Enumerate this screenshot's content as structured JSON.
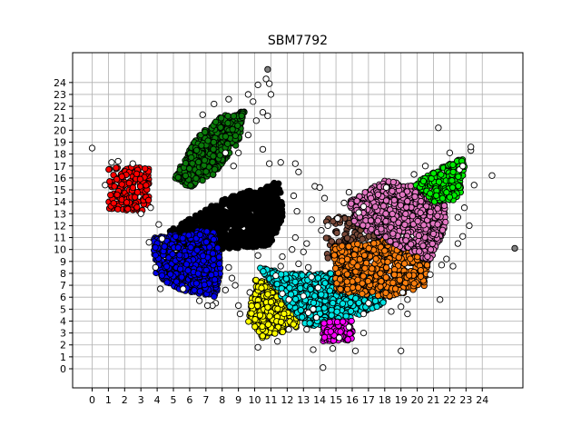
{
  "chart_data": {
    "type": "scatter",
    "title": "SBM7792",
    "xlabel": "",
    "ylabel": "",
    "xlim": [
      -1.2,
      26.5
    ],
    "ylim": [
      -1.6,
      26.5
    ],
    "xticks": [
      0,
      1,
      2,
      3,
      4,
      5,
      6,
      7,
      8,
      9,
      10,
      11,
      12,
      13,
      14,
      15,
      16,
      17,
      18,
      19,
      20,
      21,
      22,
      23,
      24
    ],
    "yticks": [
      0,
      1,
      2,
      3,
      4,
      5,
      6,
      7,
      8,
      9,
      10,
      11,
      12,
      13,
      14,
      15,
      16,
      17,
      18,
      19,
      20,
      21,
      22,
      23,
      24
    ],
    "grid": true,
    "legend": "none",
    "series": [
      {
        "color": "#ff0000",
        "kind": "rect",
        "x": [
          1.0,
          3.5
        ],
        "y": [
          13.2,
          16.9
        ]
      },
      {
        "color": "#0a7a0a",
        "kind": "poly",
        "poly": [
          [
            5.0,
            16.0
          ],
          [
            6.5,
            19.5
          ],
          [
            8.0,
            21.2
          ],
          [
            9.4,
            21.6
          ],
          [
            9.0,
            19.0
          ],
          [
            7.5,
            16.3
          ],
          [
            6.0,
            15.2
          ]
        ]
      },
      {
        "color": "#000000",
        "kind": "poly",
        "poly": [
          [
            4.7,
            11.5
          ],
          [
            8.0,
            14.2
          ],
          [
            11.5,
            15.7
          ],
          [
            11.8,
            13.0
          ],
          [
            11.0,
            10.3
          ],
          [
            7.5,
            10.0
          ],
          [
            5.0,
            10.5
          ]
        ]
      },
      {
        "color": "#0000ee",
        "kind": "poly",
        "poly": [
          [
            3.8,
            11.0
          ],
          [
            7.5,
            11.8
          ],
          [
            8.0,
            8.5
          ],
          [
            7.6,
            6.0
          ],
          [
            4.8,
            6.8
          ],
          [
            3.8,
            8.2
          ]
        ]
      },
      {
        "color": "#ffff00",
        "kind": "poly",
        "poly": [
          [
            10.0,
            7.5
          ],
          [
            12.6,
            6.5
          ],
          [
            12.6,
            3.5
          ],
          [
            10.5,
            2.5
          ],
          [
            9.6,
            4.0
          ]
        ]
      },
      {
        "color": "#00e5e5",
        "kind": "poly",
        "poly": [
          [
            10.2,
            8.5
          ],
          [
            12.0,
            8.0
          ],
          [
            14.5,
            8.0
          ],
          [
            17.8,
            8.2
          ],
          [
            18.0,
            5.5
          ],
          [
            16.0,
            4.2
          ],
          [
            13.2,
            3.5
          ],
          [
            12.0,
            5.5
          ]
        ]
      },
      {
        "color": "#ff00ff",
        "kind": "rect",
        "x": [
          14.2,
          16.0
        ],
        "y": [
          2.3,
          4.0
        ]
      },
      {
        "color": "#7a4a3a",
        "kind": "rect",
        "x": [
          14.4,
          18.6
        ],
        "y": [
          9.2,
          12.8
        ]
      },
      {
        "color": "#ff7f0e",
        "kind": "poly",
        "poly": [
          [
            14.8,
            10.2
          ],
          [
            18.5,
            11.0
          ],
          [
            20.8,
            10.0
          ],
          [
            20.5,
            7.0
          ],
          [
            18.5,
            6.0
          ],
          [
            15.0,
            6.5
          ]
        ]
      },
      {
        "color": "#e377c2",
        "kind": "poly",
        "poly": [
          [
            15.8,
            14.0
          ],
          [
            18.0,
            15.8
          ],
          [
            21.6,
            14.8
          ],
          [
            21.8,
            12.0
          ],
          [
            20.8,
            9.0
          ],
          [
            18.5,
            10.5
          ],
          [
            16.2,
            12.0
          ]
        ]
      },
      {
        "color": "#00ee00",
        "kind": "poly",
        "poly": [
          [
            19.8,
            15.5
          ],
          [
            21.5,
            16.9
          ],
          [
            23.0,
            17.8
          ],
          [
            22.6,
            14.2
          ],
          [
            21.0,
            14.0
          ]
        ]
      },
      {
        "color": "#ffffff",
        "kind": "scatter",
        "poly": [
          [
            0.5,
            17.0
          ],
          [
            7.0,
            23.0
          ],
          [
            11.0,
            24.5
          ],
          [
            12.5,
            17.5
          ],
          [
            13.5,
            13.0
          ],
          [
            14.5,
            10.5
          ],
          [
            13.5,
            6.0
          ],
          [
            14.0,
            2.0
          ],
          [
            16.0,
            1.5
          ],
          [
            19.5,
            2.5
          ],
          [
            22.0,
            8.0
          ],
          [
            24.5,
            17.0
          ],
          [
            23.0,
            19.0
          ],
          [
            14.0,
            15.0
          ]
        ]
      },
      {
        "color": "#808080",
        "kind": "points",
        "points": [
          [
            10.8,
            25.1
          ],
          [
            26.0,
            10.1
          ]
        ]
      }
    ],
    "outliers_white": [
      [
        0,
        18.5
      ],
      [
        0.8,
        15.4
      ],
      [
        1.2,
        17.3
      ],
      [
        1.6,
        17.4
      ],
      [
        3.0,
        13.0
      ],
      [
        3.6,
        13.5
      ],
      [
        2.5,
        17.2
      ],
      [
        9.6,
        23.0
      ],
      [
        10.2,
        23.8
      ],
      [
        10.7,
        24.3
      ],
      [
        10.9,
        23.9
      ],
      [
        9.9,
        22.4
      ],
      [
        8.4,
        22.6
      ],
      [
        7.5,
        22.2
      ],
      [
        6.8,
        21.3
      ],
      [
        10.5,
        21.5
      ],
      [
        10.8,
        21.2
      ],
      [
        10.1,
        20.8
      ],
      [
        11.0,
        23.0
      ],
      [
        9.6,
        19.6
      ],
      [
        8.7,
        17.0
      ],
      [
        8.2,
        18.1
      ],
      [
        9.0,
        18.1
      ],
      [
        10.5,
        18.4
      ],
      [
        10.9,
        17.2
      ],
      [
        11.6,
        17.3
      ],
      [
        12.5,
        17.2
      ],
      [
        12.7,
        16.5
      ],
      [
        13.7,
        15.3
      ],
      [
        14.0,
        15.2
      ],
      [
        12.4,
        14.5
      ],
      [
        12.6,
        13.2
      ],
      [
        13.5,
        12.5
      ],
      [
        12.5,
        11.0
      ],
      [
        13.2,
        10.5
      ],
      [
        14.1,
        11.6
      ],
      [
        13.0,
        9.8
      ],
      [
        12.7,
        8.8
      ],
      [
        13.3,
        8.5
      ],
      [
        13.5,
        7.7
      ],
      [
        13.9,
        6.8
      ],
      [
        13.0,
        6.1
      ],
      [
        13.6,
        5.0
      ],
      [
        13.2,
        3.3
      ],
      [
        13.6,
        1.6
      ],
      [
        14.2,
        0.1
      ],
      [
        14.8,
        1.7
      ],
      [
        15.2,
        2.6
      ],
      [
        16.2,
        1.5
      ],
      [
        16.7,
        3.0
      ],
      [
        15.8,
        3.5
      ],
      [
        16.7,
        4.6
      ],
      [
        17.0,
        5.5
      ],
      [
        18.4,
        4.8
      ],
      [
        19.0,
        5.2
      ],
      [
        19.4,
        4.6
      ],
      [
        19.1,
        6.4
      ],
      [
        19.4,
        5.8
      ],
      [
        19.0,
        1.5
      ],
      [
        20.8,
        7.9
      ],
      [
        21.5,
        8.7
      ],
      [
        21.8,
        9.2
      ],
      [
        22.2,
        8.6
      ],
      [
        22.5,
        10.5
      ],
      [
        22.8,
        11.1
      ],
      [
        23.2,
        12.0
      ],
      [
        22.5,
        12.7
      ],
      [
        22.9,
        13.5
      ],
      [
        23.5,
        15.4
      ],
      [
        22.6,
        16.7
      ],
      [
        22.8,
        17.0
      ],
      [
        23.3,
        18.3
      ],
      [
        23.3,
        18.6
      ],
      [
        24.6,
        16.2
      ],
      [
        21.3,
        20.2
      ],
      [
        22.0,
        18.1
      ],
      [
        20.5,
        17.0
      ],
      [
        19.8,
        16.3
      ],
      [
        18.1,
        15.2
      ],
      [
        15.8,
        14.8
      ],
      [
        16.4,
        13.1
      ],
      [
        15.1,
        12.6
      ],
      [
        14.5,
        12.0
      ],
      [
        11.6,
        8.6
      ],
      [
        11.3,
        7.8
      ],
      [
        11.7,
        6.3
      ],
      [
        12.1,
        5.8
      ],
      [
        11.4,
        2.3
      ],
      [
        12.1,
        3.3
      ],
      [
        10.2,
        1.8
      ],
      [
        8.8,
        7.0
      ],
      [
        8.2,
        6.6
      ],
      [
        7.6,
        5.5
      ],
      [
        7.4,
        5.3
      ],
      [
        7.1,
        5.3
      ],
      [
        6.6,
        5.7
      ],
      [
        5.6,
        6.7
      ],
      [
        4.2,
        6.7
      ],
      [
        4.1,
        12.1
      ],
      [
        4.3,
        10.9
      ],
      [
        3.5,
        10.6
      ],
      [
        3.9,
        8.5
      ],
      [
        8.4,
        8.5
      ],
      [
        8.6,
        7.6
      ],
      [
        9.0,
        5.3
      ],
      [
        9.7,
        6.4
      ],
      [
        9.1,
        4.6
      ],
      [
        10.2,
        9.5
      ],
      [
        11.7,
        9.4
      ],
      [
        12.3,
        10.0
      ],
      [
        14.3,
        14.3
      ],
      [
        15.5,
        13.9
      ],
      [
        16.7,
        13.6
      ],
      [
        13.8,
        4.3
      ],
      [
        13.3,
        4.7
      ],
      [
        21.4,
        5.8
      ]
    ]
  }
}
